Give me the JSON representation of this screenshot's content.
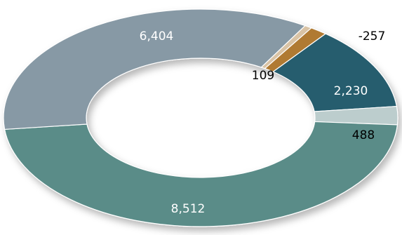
{
  "chart_data": {
    "type": "pie",
    "title": "",
    "categories": [
      "",
      "",
      "",
      "",
      "",
      ""
    ],
    "values": [
      109,
      -257,
      2230,
      488,
      8512,
      6404
    ],
    "labels": [
      "109",
      "-257",
      "2,230",
      "488",
      "8,512",
      "6,404"
    ],
    "colors": [
      "#D9C3A5",
      "#B07A31",
      "#275D6E",
      "#BCCDCD",
      "#5A8C88",
      "#8799A5"
    ],
    "label_colors": [
      "#000000",
      "#000000",
      "#FFFFFF",
      "#000000",
      "#FFFFFF",
      "#FFFFFF"
    ],
    "style": "donut",
    "legend": "none"
  }
}
